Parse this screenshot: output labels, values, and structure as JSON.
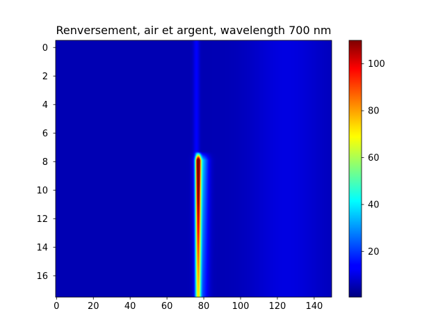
{
  "chart_data": {
    "type": "heatmap",
    "title": "Renversement, air et argent, wavelength 700 nm",
    "xlabel": "",
    "ylabel": "",
    "xlim": [
      -0.5,
      149.5
    ],
    "ylim": [
      17.5,
      -0.5
    ],
    "x_ticks": [
      0,
      20,
      40,
      60,
      80,
      100,
      120,
      140
    ],
    "y_ticks": [
      0,
      2,
      4,
      6,
      8,
      10,
      12,
      14,
      16
    ],
    "colormap": "jet",
    "colorbar": {
      "vmin": 0.5,
      "vmax": 110,
      "ticks": [
        20,
        40,
        60,
        80,
        100
      ]
    },
    "grid_shape": {
      "rows": 18,
      "cols": 150
    },
    "background_level": 6,
    "features": [
      {
        "name": "hot streak",
        "x_center": 77,
        "y_range": [
          7.3,
          17.5
        ],
        "peak_value": 110,
        "peak_y": 8
      },
      {
        "name": "faint vertical band",
        "x_center": 76,
        "y_range": [
          -0.5,
          7.5
        ],
        "value": 14
      },
      {
        "name": "diffuse glow",
        "x_range": [
          100,
          150
        ],
        "value": 11
      }
    ]
  }
}
